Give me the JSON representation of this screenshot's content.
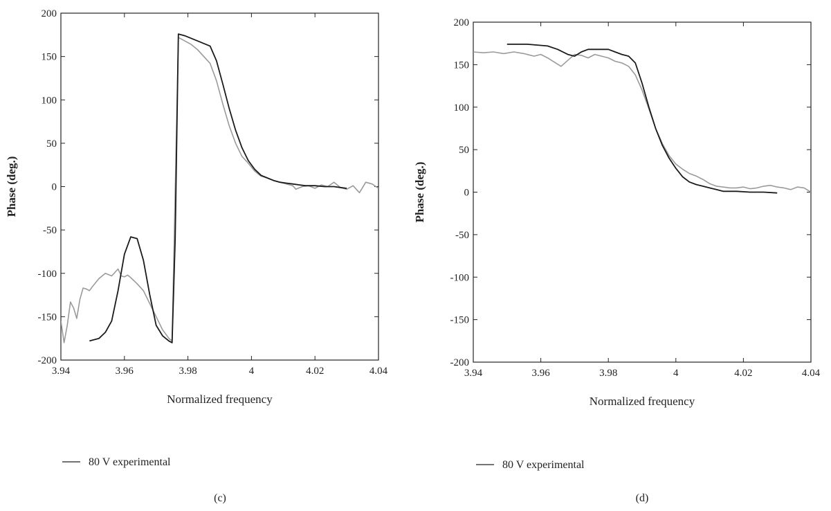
{
  "chart_data": [
    {
      "type": "line",
      "panel_label": "(c)",
      "xlabel": "Normalized frequency",
      "ylabel": "Phase (deg.)",
      "xlim": [
        3.94,
        4.04
      ],
      "ylim": [
        -200,
        200
      ],
      "xticks": [
        "3.94",
        "3.96",
        "3.98",
        "4",
        "4.02",
        "4.04"
      ],
      "yticks": [
        "-200",
        "-150",
        "-100",
        "-50",
        "0",
        "50",
        "100",
        "150",
        "200"
      ],
      "legend": [
        {
          "label": "80 V experimental",
          "color": "#444444"
        }
      ],
      "series": [
        {
          "name": "80 V experimental",
          "color": "#9a9a9a",
          "x": [
            3.94,
            3.941,
            3.942,
            3.943,
            3.944,
            3.945,
            3.946,
            3.947,
            3.948,
            3.949,
            3.95,
            3.952,
            3.954,
            3.956,
            3.958,
            3.959,
            3.96,
            3.961,
            3.962,
            3.964,
            3.966,
            3.968,
            3.97,
            3.972,
            3.974,
            3.975,
            3.977,
            3.979,
            3.981,
            3.983,
            3.985,
            3.987,
            3.989,
            3.991,
            3.993,
            3.995,
            3.997,
            3.999,
            4.001,
            4.003,
            4.005,
            4.007,
            4.009,
            4.011,
            4.013,
            4.014,
            4.016,
            4.018,
            4.02,
            4.022,
            4.024,
            4.026,
            4.028,
            4.03,
            4.032,
            4.034,
            4.036,
            4.038,
            4.04
          ],
          "y": [
            -155,
            -180,
            -160,
            -133,
            -140,
            -152,
            -130,
            -117,
            -118,
            -120,
            -115,
            -106,
            -100,
            -103,
            -95,
            -103,
            -104,
            -102,
            -105,
            -112,
            -120,
            -135,
            -150,
            -165,
            -175,
            -178,
            172,
            168,
            164,
            158,
            150,
            142,
            122,
            95,
            70,
            50,
            35,
            27,
            18,
            12,
            10,
            7,
            5,
            3,
            1,
            -3,
            0,
            1,
            -2,
            2,
            0,
            5,
            -1,
            -3,
            1,
            -7,
            5,
            3,
            -2
          ]
        },
        {
          "name": "",
          "color": "#1a1a1a",
          "x": [
            3.949,
            3.952,
            3.954,
            3.956,
            3.958,
            3.96,
            3.962,
            3.964,
            3.966,
            3.968,
            3.97,
            3.972,
            3.974,
            3.975,
            3.976,
            3.977,
            3.979,
            3.981,
            3.983,
            3.985,
            3.987,
            3.989,
            3.991,
            3.993,
            3.995,
            3.997,
            3.999,
            4.001,
            4.003,
            4.005,
            4.007,
            4.009,
            4.011,
            4.013,
            4.015,
            4.017,
            4.02,
            4.023,
            4.026,
            4.028,
            4.03
          ],
          "y": [
            -178,
            -175,
            -168,
            -155,
            -120,
            -78,
            -58,
            -60,
            -85,
            -125,
            -160,
            -172,
            -178,
            -180,
            -60,
            176,
            174,
            171,
            168,
            165,
            162,
            145,
            118,
            90,
            65,
            45,
            30,
            20,
            13,
            10,
            7,
            5,
            4,
            3,
            2,
            1,
            1,
            0,
            0,
            -1,
            -2
          ]
        }
      ]
    },
    {
      "type": "line",
      "panel_label": "(d)",
      "xlabel": "Normalized frequency",
      "ylabel": "Phase (deg.)",
      "xlim": [
        3.94,
        4.04
      ],
      "ylim": [
        -200,
        200
      ],
      "xticks": [
        "3.94",
        "3.96",
        "3.98",
        "4",
        "4.02",
        "4.04"
      ],
      "yticks": [
        "-200",
        "-150",
        "-100",
        "-50",
        "0",
        "50",
        "100",
        "150",
        "200"
      ],
      "legend": [
        {
          "label": "80 V experimental",
          "color": "#444444"
        }
      ],
      "series": [
        {
          "name": "80 V experimental",
          "color": "#9a9a9a",
          "x": [
            3.94,
            3.943,
            3.946,
            3.949,
            3.952,
            3.955,
            3.958,
            3.96,
            3.962,
            3.964,
            3.966,
            3.968,
            3.97,
            3.972,
            3.974,
            3.976,
            3.978,
            3.98,
            3.982,
            3.984,
            3.986,
            3.988,
            3.99,
            3.992,
            3.994,
            3.996,
            3.998,
            4.0,
            4.002,
            4.004,
            4.006,
            4.008,
            4.01,
            4.012,
            4.014,
            4.016,
            4.018,
            4.02,
            4.022,
            4.024,
            4.026,
            4.028,
            4.03,
            4.032,
            4.034,
            4.036,
            4.038,
            4.04
          ],
          "y": [
            165,
            164,
            165,
            163,
            165,
            163,
            160,
            162,
            158,
            153,
            148,
            155,
            162,
            161,
            158,
            162,
            160,
            158,
            154,
            152,
            148,
            138,
            120,
            98,
            75,
            57,
            43,
            33,
            27,
            22,
            19,
            15,
            10,
            7,
            6,
            5,
            5,
            6,
            4,
            5,
            7,
            8,
            6,
            5,
            3,
            6,
            5,
            0
          ]
        },
        {
          "name": "",
          "color": "#1a1a1a",
          "x": [
            3.95,
            3.953,
            3.956,
            3.959,
            3.962,
            3.965,
            3.968,
            3.97,
            3.972,
            3.974,
            3.976,
            3.978,
            3.98,
            3.982,
            3.984,
            3.986,
            3.988,
            3.99,
            3.992,
            3.994,
            3.996,
            3.998,
            4.0,
            4.002,
            4.004,
            4.006,
            4.008,
            4.01,
            4.012,
            4.014,
            4.018,
            4.022,
            4.026,
            4.03
          ],
          "y": [
            174,
            174,
            174,
            173,
            172,
            168,
            162,
            160,
            165,
            168,
            168,
            168,
            168,
            165,
            162,
            160,
            152,
            128,
            100,
            75,
            55,
            40,
            28,
            18,
            12,
            9,
            7,
            5,
            3,
            1,
            1,
            0,
            0,
            -1
          ]
        }
      ]
    }
  ]
}
